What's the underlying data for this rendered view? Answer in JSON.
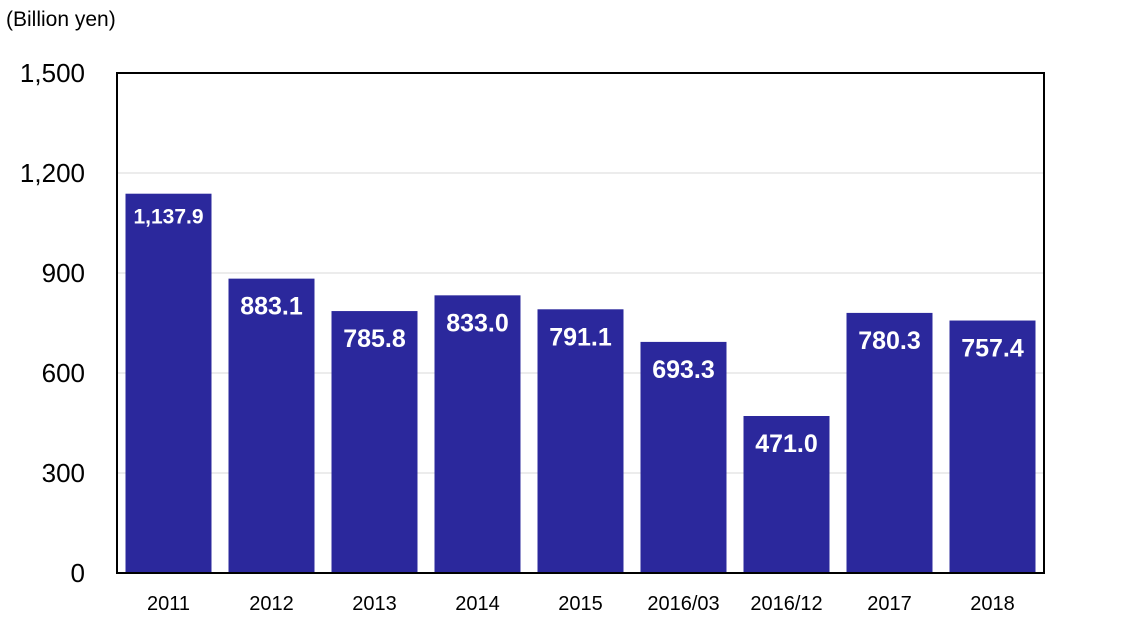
{
  "chart_data": {
    "type": "bar",
    "unit_label": "(Billion yen)",
    "categories": [
      "2011",
      "2012",
      "2013",
      "2014",
      "2015",
      "2016/03",
      "2016/12",
      "2017",
      "2018"
    ],
    "values": [
      1137.9,
      883.1,
      785.8,
      833.0,
      791.1,
      693.3,
      471.0,
      780.3,
      757.4
    ],
    "value_labels": [
      "1,137.9",
      "883.1",
      "785.8",
      "833.0",
      "791.1",
      "693.3",
      "471.0",
      "780.3",
      "757.4"
    ],
    "y_ticks": [
      0,
      300,
      600,
      900,
      1200,
      1500
    ],
    "y_tick_labels": [
      "0",
      "300",
      "600",
      "900",
      "1,200",
      "1,500"
    ],
    "ylim": [
      0,
      1500
    ],
    "grid": true,
    "legend": "none",
    "colors": {
      "bar": "#2b289c",
      "grid": "#d9d9d9",
      "axis": "#000000"
    }
  }
}
